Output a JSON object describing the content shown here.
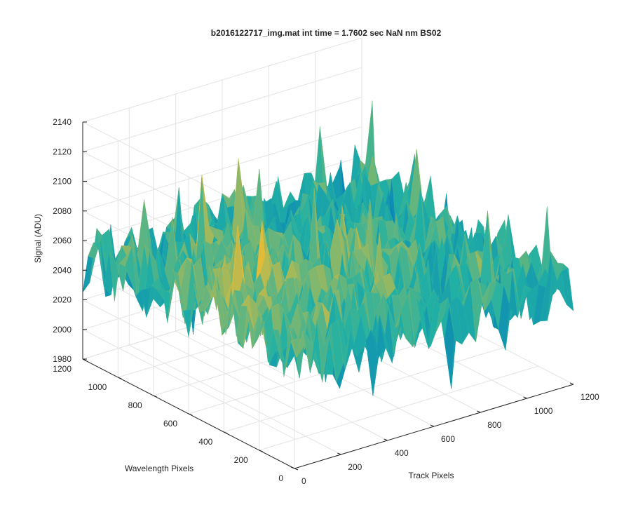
{
  "chart_data": {
    "type": "surface",
    "title": "b2016122717_img.mat int time = 1.7602 sec  NaN nm BS02",
    "xlabel": "Track Pixels",
    "ylabel": "Wavelength Pixels",
    "zlabel": "Signal (ADU)",
    "xlim": [
      0,
      1200
    ],
    "ylim": [
      0,
      1200
    ],
    "zlim": [
      1980,
      2140
    ],
    "x_ticks": [
      "0",
      "200",
      "400",
      "600",
      "800",
      "1000",
      "1200"
    ],
    "y_ticks": [
      "0",
      "200",
      "400",
      "600",
      "800",
      "1000",
      "1200"
    ],
    "z_ticks": [
      "1980",
      "2000",
      "2020",
      "2040",
      "2060",
      "2080",
      "2100",
      "2120",
      "2140"
    ],
    "grid": true,
    "colormap": "parula",
    "colors": {
      "low": "#0072bd",
      "mid": "#21b1a4",
      "high": "#f2bd2f"
    },
    "surface_summary": {
      "mean_signal": 2045,
      "noise_amplitude": 28,
      "approx_min": 1985,
      "approx_max": 2135,
      "trend": "signal higher near low track pixels and mid-range wavelength pixels"
    }
  }
}
